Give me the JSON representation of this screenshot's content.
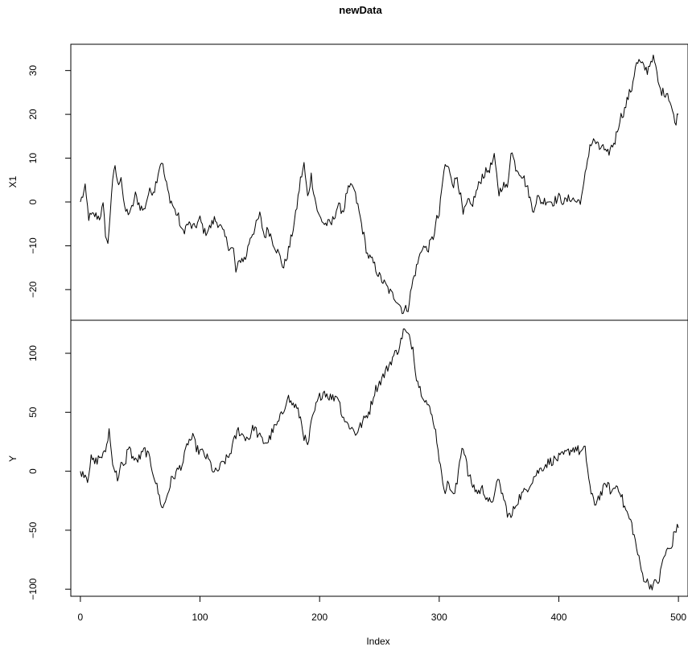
{
  "chart_data": {
    "type": "line",
    "title": "newData",
    "xlabel": "Index",
    "xlim": [
      -8,
      508
    ],
    "x_ticks": [
      0,
      100,
      200,
      300,
      400,
      500
    ],
    "grid": false,
    "legend": "none",
    "panels": [
      {
        "id": "x1",
        "ylabel": "X1",
        "ylim": [
          -27,
          36
        ],
        "y_ticks": [
          -20,
          -10,
          0,
          10,
          20,
          30
        ],
        "anchors": [
          [
            0,
            0
          ],
          [
            4,
            3
          ],
          [
            7,
            -3.5
          ],
          [
            12,
            -3
          ],
          [
            16,
            -3.5
          ],
          [
            19,
            -1
          ],
          [
            21,
            -7
          ],
          [
            23,
            -10
          ],
          [
            26,
            2
          ],
          [
            29,
            8.5
          ],
          [
            31,
            4
          ],
          [
            34,
            6
          ],
          [
            37,
            -2
          ],
          [
            42,
            -2.5
          ],
          [
            46,
            1.5
          ],
          [
            50,
            -1
          ],
          [
            53,
            -2
          ],
          [
            57,
            2
          ],
          [
            62,
            3
          ],
          [
            66,
            8
          ],
          [
            68,
            9.5
          ],
          [
            71,
            5
          ],
          [
            74,
            1.5
          ],
          [
            79,
            -2
          ],
          [
            82,
            -3.5
          ],
          [
            85,
            -7
          ],
          [
            90,
            -5
          ],
          [
            95,
            -6
          ],
          [
            100,
            -4
          ],
          [
            104,
            -7
          ],
          [
            108,
            -6
          ],
          [
            112,
            -4
          ],
          [
            116,
            -5
          ],
          [
            120,
            -7.5
          ],
          [
            124,
            -10
          ],
          [
            128,
            -11
          ],
          [
            130,
            -16
          ],
          [
            134,
            -13
          ],
          [
            138,
            -13
          ],
          [
            142,
            -8
          ],
          [
            146,
            -6
          ],
          [
            150,
            -3
          ],
          [
            154,
            -8
          ],
          [
            157,
            -6
          ],
          [
            161,
            -9
          ],
          [
            166,
            -12
          ],
          [
            170,
            -15
          ],
          [
            175,
            -10
          ],
          [
            180,
            -3
          ],
          [
            184,
            5
          ],
          [
            187,
            8.5
          ],
          [
            190,
            1
          ],
          [
            193,
            6
          ],
          [
            196,
            1
          ],
          [
            199,
            -3
          ],
          [
            204,
            -5
          ],
          [
            210,
            -5
          ],
          [
            215,
            -1
          ],
          [
            220,
            -2
          ],
          [
            223,
            2.5
          ],
          [
            228,
            3.5
          ],
          [
            232,
            -1
          ],
          [
            235,
            -5
          ],
          [
            240,
            -12
          ],
          [
            245,
            -14
          ],
          [
            250,
            -17
          ],
          [
            255,
            -19
          ],
          [
            260,
            -21
          ],
          [
            264,
            -22
          ],
          [
            268,
            -24
          ],
          [
            270,
            -25
          ],
          [
            274,
            -24
          ],
          [
            278,
            -18
          ],
          [
            282,
            -14
          ],
          [
            286,
            -10
          ],
          [
            290,
            -11
          ],
          [
            295,
            -8
          ],
          [
            298,
            -4
          ],
          [
            300,
            -3
          ],
          [
            303,
            5
          ],
          [
            305,
            8.5
          ],
          [
            309,
            7
          ],
          [
            312,
            4
          ],
          [
            315,
            6
          ],
          [
            318,
            1
          ],
          [
            320,
            -3
          ],
          [
            324,
            0
          ],
          [
            327,
            -1
          ],
          [
            332,
            3
          ],
          [
            336,
            6
          ],
          [
            340,
            7
          ],
          [
            343,
            8
          ],
          [
            346,
            10
          ],
          [
            350,
            2
          ],
          [
            353,
            4
          ],
          [
            357,
            3
          ],
          [
            360,
            12
          ],
          [
            364,
            8
          ],
          [
            367,
            7
          ],
          [
            370,
            6
          ],
          [
            375,
            2
          ],
          [
            378,
            -2
          ],
          [
            382,
            1
          ],
          [
            386,
            0
          ],
          [
            390,
            0.5
          ],
          [
            395,
            0
          ],
          [
            400,
            1
          ],
          [
            405,
            0
          ],
          [
            410,
            1
          ],
          [
            415,
            0
          ],
          [
            418,
            0.5
          ],
          [
            420,
            2
          ],
          [
            423,
            8
          ],
          [
            426,
            13
          ],
          [
            430,
            14
          ],
          [
            434,
            12
          ],
          [
            436,
            13
          ],
          [
            440,
            10.5
          ],
          [
            443,
            12
          ],
          [
            447,
            14
          ],
          [
            451,
            19
          ],
          [
            455,
            21
          ],
          [
            458,
            24
          ],
          [
            461,
            26
          ],
          [
            464,
            31
          ],
          [
            467,
            32
          ],
          [
            470,
            31
          ],
          [
            474,
            30
          ],
          [
            478,
            33
          ],
          [
            480,
            32
          ],
          [
            484,
            26
          ],
          [
            487,
            25
          ],
          [
            491,
            25
          ],
          [
            494,
            22
          ],
          [
            497,
            18
          ],
          [
            500,
            20
          ]
        ]
      },
      {
        "id": "y",
        "ylabel": "Y",
        "ylim": [
          -106,
          128
        ],
        "y_ticks": [
          -100,
          -50,
          0,
          50,
          100
        ],
        "anchors": [
          [
            0,
            0
          ],
          [
            4,
            -2
          ],
          [
            6,
            -6
          ],
          [
            9,
            10
          ],
          [
            12,
            7
          ],
          [
            16,
            12
          ],
          [
            20,
            14
          ],
          [
            22,
            22
          ],
          [
            24,
            35
          ],
          [
            26,
            15
          ],
          [
            28,
            4
          ],
          [
            31,
            -6
          ],
          [
            34,
            5
          ],
          [
            37,
            3
          ],
          [
            40,
            22
          ],
          [
            43,
            14
          ],
          [
            46,
            8
          ],
          [
            50,
            12
          ],
          [
            54,
            18
          ],
          [
            58,
            10
          ],
          [
            62,
            -5
          ],
          [
            66,
            -22
          ],
          [
            69,
            -32
          ],
          [
            72,
            -22
          ],
          [
            76,
            -8
          ],
          [
            81,
            0
          ],
          [
            86,
            8
          ],
          [
            90,
            25
          ],
          [
            94,
            28
          ],
          [
            98,
            18
          ],
          [
            103,
            15
          ],
          [
            108,
            8
          ],
          [
            112,
            -2
          ],
          [
            116,
            2
          ],
          [
            120,
            8
          ],
          [
            124,
            12
          ],
          [
            128,
            24
          ],
          [
            132,
            35
          ],
          [
            136,
            30
          ],
          [
            141,
            28
          ],
          [
            145,
            38
          ],
          [
            149,
            30
          ],
          [
            153,
            25
          ],
          [
            157,
            25
          ],
          [
            161,
            35
          ],
          [
            165,
            40
          ],
          [
            170,
            52
          ],
          [
            173,
            64
          ],
          [
            176,
            58
          ],
          [
            180,
            55
          ],
          [
            184,
            45
          ],
          [
            187,
            30
          ],
          [
            190,
            20
          ],
          [
            193,
            40
          ],
          [
            197,
            55
          ],
          [
            200,
            63
          ],
          [
            204,
            68
          ],
          [
            207,
            64
          ],
          [
            211,
            62
          ],
          [
            215,
            65
          ],
          [
            219,
            48
          ],
          [
            223,
            40
          ],
          [
            226,
            38
          ],
          [
            230,
            32
          ],
          [
            234,
            38
          ],
          [
            238,
            45
          ],
          [
            242,
            52
          ],
          [
            246,
            68
          ],
          [
            250,
            75
          ],
          [
            254,
            82
          ],
          [
            258,
            90
          ],
          [
            262,
            98
          ],
          [
            265,
            102
          ],
          [
            268,
            110
          ],
          [
            270,
            120
          ],
          [
            274,
            115
          ],
          [
            278,
            105
          ],
          [
            281,
            80
          ],
          [
            284,
            70
          ],
          [
            288,
            62
          ],
          [
            292,
            52
          ],
          [
            296,
            40
          ],
          [
            299,
            20
          ],
          [
            302,
            -5
          ],
          [
            305,
            -15
          ],
          [
            308,
            -10
          ],
          [
            312,
            -22
          ],
          [
            315,
            -10
          ],
          [
            317,
            10
          ],
          [
            319,
            20
          ],
          [
            321,
            18
          ],
          [
            324,
            -2
          ],
          [
            328,
            -12
          ],
          [
            332,
            -18
          ],
          [
            336,
            -15
          ],
          [
            340,
            -22
          ],
          [
            344,
            -30
          ],
          [
            347,
            -12
          ],
          [
            350,
            -10
          ],
          [
            353,
            -20
          ],
          [
            357,
            -35
          ],
          [
            360,
            -40
          ],
          [
            363,
            -30
          ],
          [
            367,
            -22
          ],
          [
            371,
            -18
          ],
          [
            375,
            -12
          ],
          [
            379,
            -5
          ],
          [
            383,
            0
          ],
          [
            388,
            5
          ],
          [
            392,
            8
          ],
          [
            397,
            10
          ],
          [
            402,
            12
          ],
          [
            406,
            15
          ],
          [
            410,
            18
          ],
          [
            414,
            20
          ],
          [
            418,
            16
          ],
          [
            422,
            18
          ],
          [
            425,
            -5
          ],
          [
            427,
            -20
          ],
          [
            430,
            -28
          ],
          [
            433,
            -22
          ],
          [
            436,
            -18
          ],
          [
            440,
            -10
          ],
          [
            444,
            -18
          ],
          [
            448,
            -12
          ],
          [
            451,
            -15
          ],
          [
            454,
            -28
          ],
          [
            458,
            -38
          ],
          [
            461,
            -45
          ],
          [
            464,
            -60
          ],
          [
            467,
            -75
          ],
          [
            470,
            -88
          ],
          [
            473,
            -93
          ],
          [
            477,
            -97
          ],
          [
            481,
            -95
          ],
          [
            484,
            -92
          ],
          [
            487,
            -75
          ],
          [
            490,
            -68
          ],
          [
            494,
            -65
          ],
          [
            497,
            -50
          ],
          [
            500,
            -48
          ]
        ]
      }
    ]
  }
}
